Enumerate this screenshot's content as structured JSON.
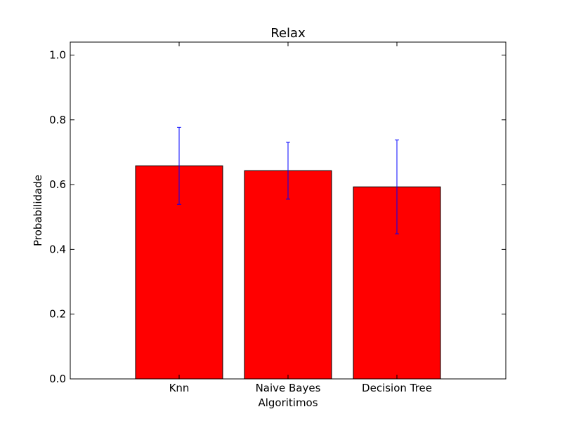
{
  "chart_data": {
    "type": "bar",
    "title": "Relax",
    "xlabel": "Algoritimos",
    "ylabel": "Probabilidade",
    "categories": [
      "Knn",
      "Naive Bayes",
      "Decision Tree"
    ],
    "values": [
      0.658,
      0.643,
      0.593
    ],
    "errors": [
      0.119,
      0.088,
      0.145
    ],
    "ylim": [
      0.0,
      1.04
    ],
    "yticks": [
      0.0,
      0.2,
      0.4,
      0.6,
      0.8,
      1.0
    ],
    "ytick_labels": [
      "0.0",
      "0.2",
      "0.4",
      "0.6",
      "0.8",
      "1.0"
    ],
    "grid": false,
    "colors": {
      "bar_fill": "#ff0000",
      "bar_edge": "#000000",
      "error_bar": "#0000ff",
      "axes": "#000000",
      "background": "#ffffff"
    }
  }
}
